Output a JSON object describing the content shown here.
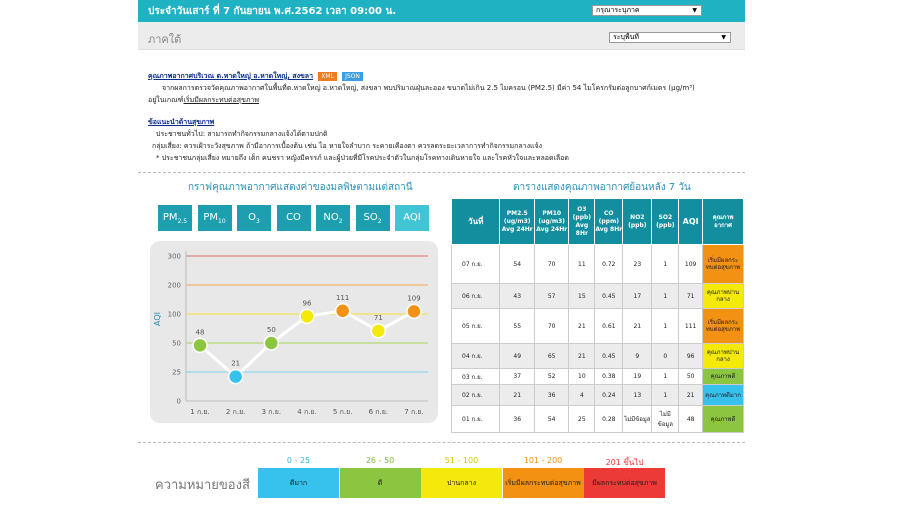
{
  "header": {
    "date_title": "ประจำวันเสาร์ ที่ 7 กันยายน พ.ศ.2562 เวลา 09:00 น.",
    "province_select": "กรุณาระบุภาค",
    "region_title": "ภาคใต้",
    "area_select": "ระบุพื้นที่"
  },
  "info": {
    "title": "คุณภาพอากาศบริเวณ ต.หาดใหญ่ อ.หาดใหญ่, สงขลา",
    "xml": "XML",
    "json": "JSON",
    "desc_1": "จากผลการตรวจวัดคุณภาพอากาศในพื้นที่ต.หาดใหญ่ อ.หาดใหญ่, สงขลา พบปริมาณฝุ่นละออง ขนาดไม่เกิน 2.5 ไมครอน (PM2.5) มีค่า 54 ไมโครกรัมต่อลูกบาศก์เมตร (µg/m³)",
    "desc_2a": "อยู่ในเกณฑ์",
    "desc_2b": "เริ่มมีผลกระทบต่อสุขภาพ",
    "advice_title": "ข้อแนะนำด้านสุขภาพ",
    "advice_1": "ประชาชนทั่วไป: สามารถทำกิจกรรมกลางแจ้งได้ตามปกติ",
    "advice_2": "กลุ่มเสี่ยง: ควรเฝ้าระวังสุขภาพ ถ้ามีอาการเบื้องต้น เช่น ไอ หายใจลำบาก ระคายเคืองตา ควรลดระยะเวลาการทำกิจกรรมกลางแจ้ง",
    "advice_3": "* ประชาชนกลุ่มเสี่ยง หมายถึง เด็ก คนชรา หญิงมีครรภ์ และผู้ป่วยที่มีโรคประจำตัวในกลุ่มโรคทางเดินหายใจ และโรคหัวใจและหลอดเลือด"
  },
  "graph_title": "กราฟคุณภาพอากาศแสดงค่าของมลพิษตามแต่สถานี",
  "table_title": "ตารางแสดงคุณภาพอากาศย้อนหลัง 7 วัน",
  "tabs": [
    {
      "main": "PM",
      "sub": "2.5"
    },
    {
      "main": "PM",
      "sub": "10"
    },
    {
      "main": "O",
      "sub": "3"
    },
    {
      "main": "CO",
      "sub": ""
    },
    {
      "main": "NO",
      "sub": "2"
    },
    {
      "main": "SO",
      "sub": "2"
    },
    {
      "main": "AQI",
      "sub": ""
    }
  ],
  "chart_data": {
    "type": "line",
    "ylabel": "AQI",
    "categories": [
      "1 ก.ย.",
      "2 ก.ย.",
      "3 ก.ย.",
      "4 ก.ย.",
      "5 ก.ย.",
      "6 ก.ย.",
      "7 ก.ย."
    ],
    "values": [
      48,
      21,
      50,
      96,
      111,
      71,
      109
    ],
    "point_colors": [
      "#8cc641",
      "#37c2ee",
      "#8cc641",
      "#f5e80b",
      "#f39113",
      "#f5e80b",
      "#f39113"
    ],
    "yticks": [
      0,
      25,
      50,
      100,
      200,
      300
    ],
    "ylim": [
      0,
      300
    ],
    "threshold_colors": {
      "25": "#7ed0ec",
      "50": "#a8d45a",
      "100": "#f2e23c",
      "200": "#f5a74e",
      "300": "#e06b62"
    }
  },
  "table": {
    "headers": [
      "วันที่",
      "PM2.5 (ug/m3) Avg 24Hr",
      "PM10 (ug/m3) Avg 24Hr",
      "O3 (ppb) Avg 8Hr",
      "CO (ppm) Avg 8Hr",
      "NO2 (ppb)",
      "SO2 (ppb)",
      "AQI",
      "คุณภาพ อากาศ"
    ],
    "rows": [
      {
        "day": "07 ก.ย.",
        "pm25": "54",
        "pm10": "70",
        "o3": "11",
        "co": "0.72",
        "no2": "23",
        "so2": "1",
        "aqi": "109",
        "quality": "เริ่มมีผลกระทบต่อสุขภาพ",
        "color": "#f39113"
      },
      {
        "day": "06 ก.ย.",
        "pm25": "43",
        "pm10": "57",
        "o3": "15",
        "co": "0.45",
        "no2": "17",
        "so2": "1",
        "aqi": "71",
        "quality": "คุณภาพปานกลาง",
        "color": "#f5e80b"
      },
      {
        "day": "05 ก.ย.",
        "pm25": "55",
        "pm10": "70",
        "o3": "21",
        "co": "0.61",
        "no2": "21",
        "so2": "1",
        "aqi": "111",
        "quality": "เริ่มมีผลกระทบต่อสุขภาพ",
        "color": "#f39113"
      },
      {
        "day": "04 ก.ย.",
        "pm25": "49",
        "pm10": "65",
        "o3": "21",
        "co": "0.45",
        "no2": "9",
        "so2": "0",
        "aqi": "96",
        "quality": "คุณภาพปานกลาง",
        "color": "#f5e80b"
      },
      {
        "day": "03 ก.ย.",
        "pm25": "37",
        "pm10": "52",
        "o3": "10",
        "co": "0.38",
        "no2": "19",
        "so2": "1",
        "aqi": "50",
        "quality": "คุณภาพดี",
        "color": "#8cc641"
      },
      {
        "day": "02 ก.ย.",
        "pm25": "21",
        "pm10": "36",
        "o3": "4",
        "co": "0.24",
        "no2": "13",
        "so2": "1",
        "aqi": "21",
        "quality": "คุณภาพดีมาก",
        "color": "#37c2ee"
      },
      {
        "day": "01 ก.ย.",
        "pm25": "36",
        "pm10": "54",
        "o3": "25",
        "co": "0.28",
        "no2": "ไม่มีข้อมูล",
        "so2": "ไม่มีข้อมูล",
        "aqi": "48",
        "quality": "คุณภาพดี",
        "color": "#8cc641"
      }
    ]
  },
  "legend": {
    "title": "ความหมายของสี",
    "items": [
      {
        "range": "0 - 25",
        "label": "ดีมาก",
        "color": "#37c2ee",
        "text_color": "#3bb4e0"
      },
      {
        "range": "26 - 50",
        "label": "ดี",
        "color": "#8cc641",
        "text_color": "#7cb83a"
      },
      {
        "range": "51 - 100",
        "label": "ปานกลาง",
        "color": "#f5e80b",
        "text_color": "#d4c800"
      },
      {
        "range": "101 - 200",
        "label": "เริ่มมีผลกระทบต่อสุขภาพ",
        "color": "#f39113",
        "text_color": "#f39113"
      },
      {
        "range": "201 ขึ้นไป",
        "label": "มีผลกระทบต่อสุขภาพ",
        "color": "#ec3a36",
        "text_color": "#ec3a36"
      }
    ]
  }
}
